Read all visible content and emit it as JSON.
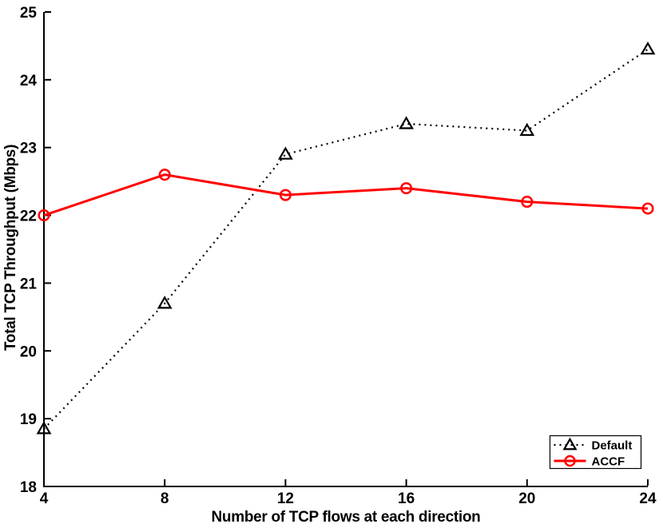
{
  "chart_data": {
    "type": "line",
    "title": "",
    "xlabel": "Number of TCP flows at each direction",
    "ylabel": "Total TCP Throughput (Mbps)",
    "x": [
      4,
      8,
      12,
      16,
      20,
      24
    ],
    "xlim": [
      4,
      24
    ],
    "ylim": [
      18,
      25
    ],
    "xticks": [
      4,
      8,
      12,
      16,
      20,
      24
    ],
    "yticks": [
      18,
      19,
      20,
      21,
      22,
      23,
      24,
      25
    ],
    "grid": false,
    "background": "#ffffff",
    "axis_color": "#000000",
    "series": [
      {
        "name": "Default",
        "color": "#000000",
        "line_style": "dotted",
        "marker": "triangle",
        "values": [
          18.85,
          20.7,
          22.9,
          23.35,
          23.25,
          24.45
        ]
      },
      {
        "name": "ACCF",
        "color": "#ff0000",
        "line_style": "solid",
        "marker": "circle",
        "values": [
          22.0,
          22.6,
          22.3,
          22.4,
          22.2,
          22.1
        ]
      }
    ],
    "legend": {
      "position": "lower-right",
      "entries": [
        "Default",
        "ACCF"
      ]
    }
  }
}
